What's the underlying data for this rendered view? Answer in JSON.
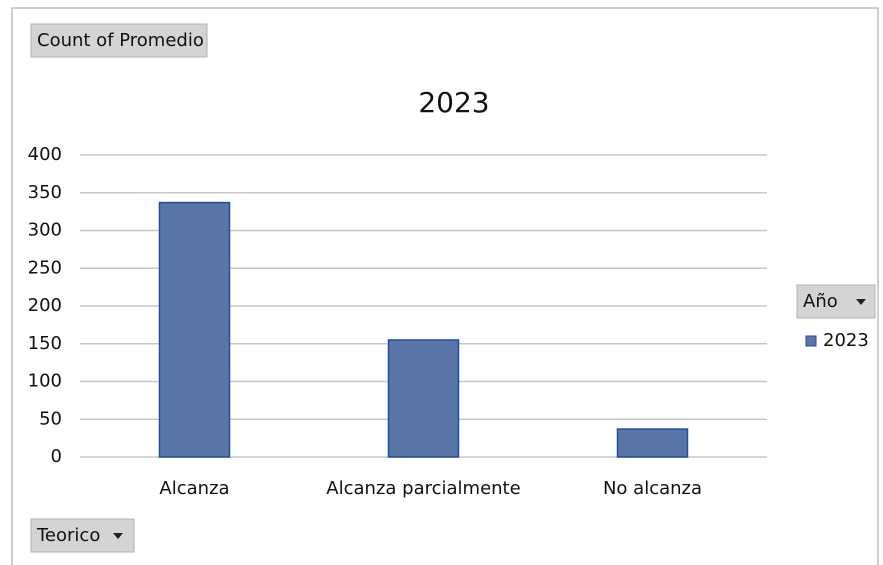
{
  "chart_data": {
    "type": "bar",
    "title": "2023",
    "value_field": "Count of Promedio",
    "legend_field": "Año",
    "axis_field": "Teorico",
    "categories": [
      "Alcanza",
      "Alcanza parcialmente",
      "No alcanza"
    ],
    "series": [
      {
        "name": "2023",
        "color": "#5a76a8",
        "values": [
          337,
          155,
          37
        ]
      }
    ],
    "ylim": [
      0,
      400
    ],
    "yticks": [
      0,
      50,
      100,
      150,
      200,
      250,
      300,
      350,
      400
    ],
    "grid": true,
    "legend": "right"
  }
}
